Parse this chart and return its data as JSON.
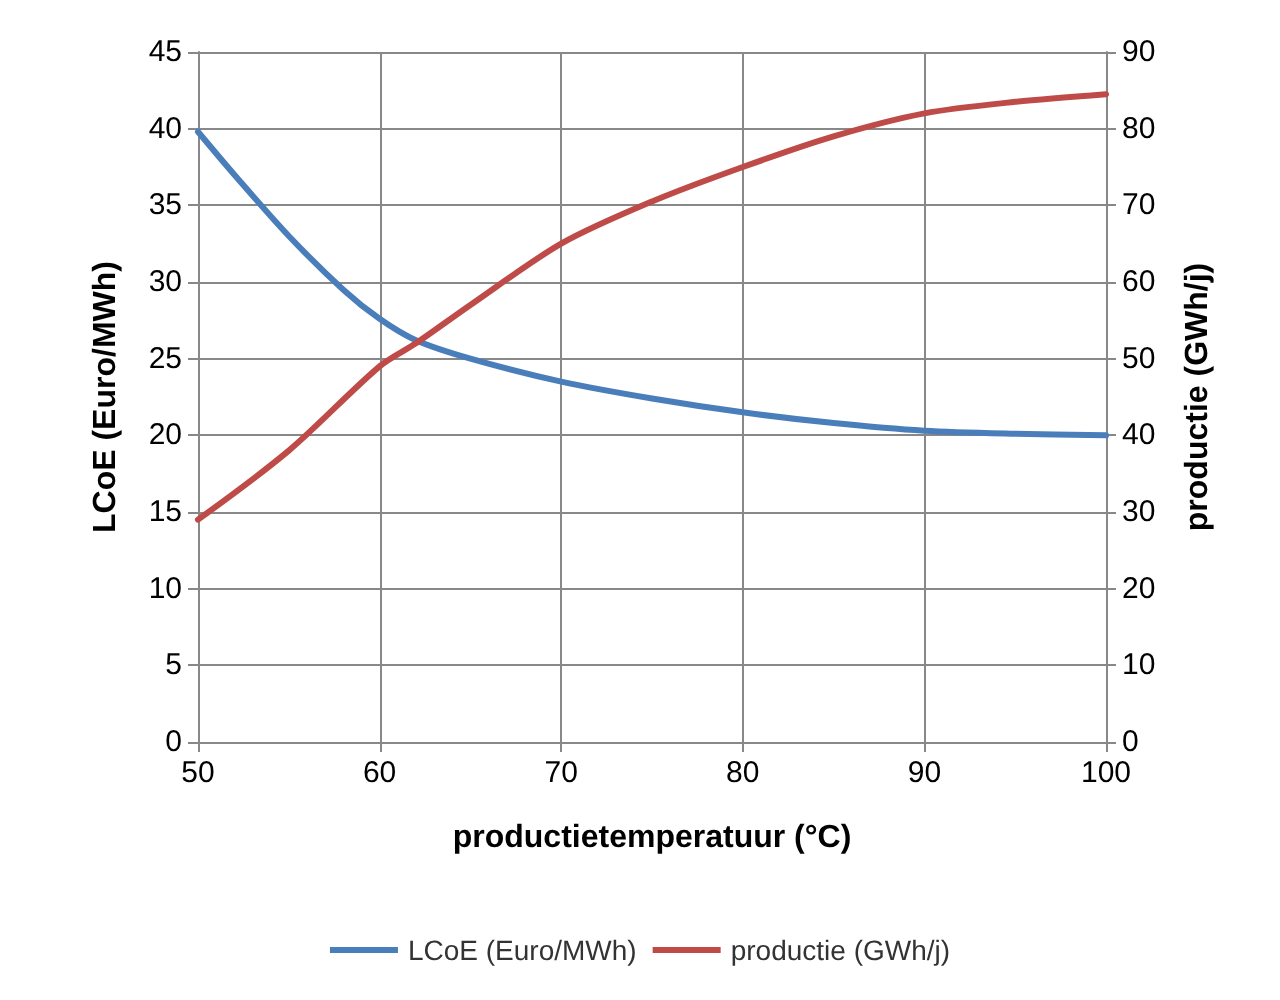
{
  "chart_data": {
    "type": "line",
    "xlabel": "productietemperatuur (°C)",
    "ylabel": "LCoE (Euro/MWh)",
    "y2label": "productie (GWh/j)",
    "xlim": [
      50,
      100
    ],
    "xticks": [
      50,
      60,
      70,
      80,
      90,
      100
    ],
    "ylim": [
      0,
      45
    ],
    "yticks": [
      0,
      5,
      10,
      15,
      20,
      25,
      30,
      35,
      40,
      45
    ],
    "y2lim": [
      0,
      90
    ],
    "y2ticks": [
      0,
      10,
      20,
      30,
      40,
      50,
      60,
      70,
      80,
      90
    ],
    "grid": true,
    "legend": "bottom",
    "marker": "none",
    "line_style": "solid",
    "series": [
      {
        "name": "LCoE (Euro/MWh)",
        "color": "#4a7ebb",
        "x": [
          50,
          52,
          55,
          58,
          60,
          62,
          65,
          70,
          75,
          80,
          85,
          90,
          95,
          100
        ],
        "values": [
          39.8,
          37,
          33,
          29.5,
          27.6,
          26.2,
          25,
          23.5,
          22.4,
          21.5,
          20.8,
          20.3,
          20.1,
          20
        ]
      },
      {
        "name": "productie (GWh/j)",
        "color": "#be4b48",
        "axis": "y2",
        "x": [
          50,
          55,
          60,
          62,
          65,
          70,
          75,
          80,
          85,
          90,
          95,
          100
        ],
        "values": [
          29,
          38,
          49,
          52,
          57,
          65,
          70.5,
          75,
          79,
          82,
          83.5,
          84.5
        ]
      }
    ]
  }
}
